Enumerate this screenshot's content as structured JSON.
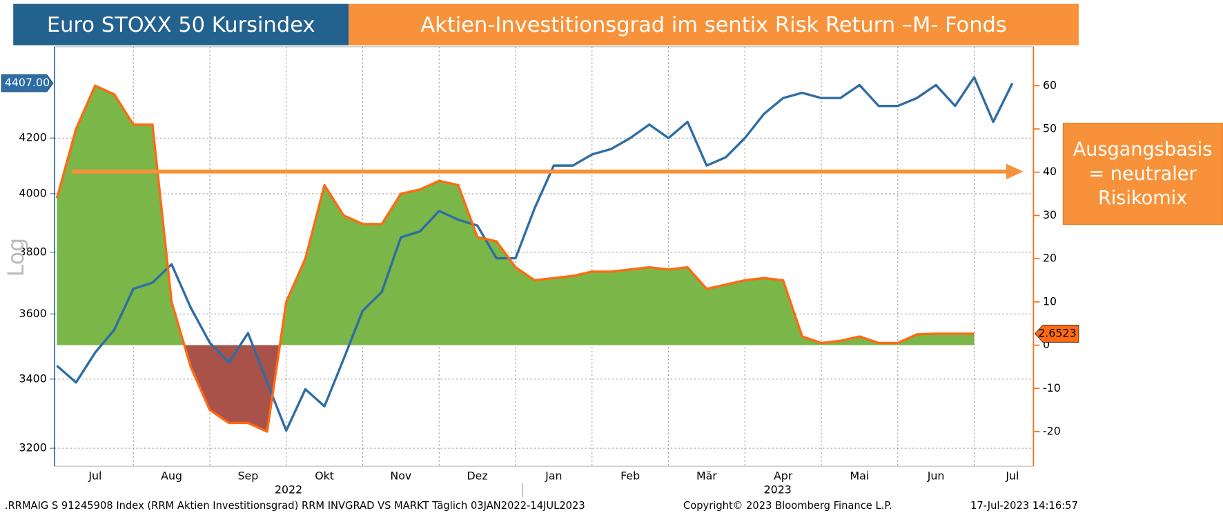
{
  "chart_data": {
    "type": "line",
    "titles": [
      "Euro STOXX 50 Kursindex",
      "Aktien-Investitionsgrad im sentix Risk Return –M- Fonds"
    ],
    "annotation": [
      "Ausgangsbasis",
      "= neutraler",
      "Risikomix"
    ],
    "y_label": "Log",
    "log_scale": true,
    "grid": true,
    "x": [
      "",
      null,
      "Jul",
      null,
      null,
      null,
      "Aug",
      null,
      null,
      null,
      "Sep",
      null,
      null,
      null,
      "Okt",
      null,
      null,
      null,
      "Nov",
      null,
      null,
      null,
      "Dez",
      null,
      null,
      null,
      "Jan",
      null,
      null,
      null,
      "Feb",
      null,
      null,
      null,
      "Mär",
      null,
      null,
      null,
      "Apr",
      null,
      null,
      null,
      "Mai",
      null,
      null,
      null,
      "Jun",
      null,
      null,
      null,
      "Jul"
    ],
    "x_years": [
      "2022",
      "2023"
    ],
    "ylim": [
      3150,
      4550
    ],
    "yticks": [
      3200,
      3400,
      3600,
      3800,
      4000,
      4200
    ],
    "y2lim": [
      -28,
      69
    ],
    "y2ticks": [
      -20,
      -10,
      0,
      10,
      20,
      30,
      40,
      50,
      60
    ],
    "series": [
      {
        "name": "Euro STOXX 50 Kursindex",
        "color": "#2e6da4",
        "axis": "y",
        "values": [
          3440,
          3390,
          3480,
          3550,
          3680,
          3700,
          3760,
          3620,
          3510,
          3450,
          3540,
          3390,
          3250,
          3370,
          3320,
          3460,
          3610,
          3670,
          3850,
          3870,
          3940,
          3910,
          3890,
          3780,
          3780,
          3950,
          4100,
          4100,
          4140,
          4160,
          4200,
          4250,
          4200,
          4260,
          4100,
          4130,
          4200,
          4290,
          4350,
          4370,
          4350,
          4350,
          4400,
          4320,
          4320,
          4350,
          4400,
          4320,
          4430,
          4260,
          4407
        ],
        "value_labels": [
          null,
          null,
          null,
          null,
          null,
          null,
          null,
          null,
          null,
          null,
          null,
          null,
          null,
          null,
          null,
          null,
          null,
          null,
          null,
          null,
          null,
          null,
          null,
          null,
          null,
          null,
          null,
          null,
          null,
          null,
          null,
          null,
          null,
          null,
          null,
          null,
          null,
          null,
          null,
          null,
          null,
          null,
          null,
          null,
          null,
          null,
          null,
          null,
          null,
          null,
          "4407.00"
        ]
      },
      {
        "name": "Aktien-Investitionsgrad im sentix Risk Return –M- Fonds",
        "color": "#ff6a13",
        "axis": "y2",
        "pos_color": "#7ab648",
        "neg_color": "#a8524a",
        "values": [
          34,
          50,
          60,
          58,
          51,
          51,
          10,
          -5,
          -15,
          -18,
          -18,
          -20,
          10,
          20,
          37,
          30,
          28,
          28,
          35,
          36,
          38,
          37,
          25,
          24,
          18,
          15,
          15.5,
          16,
          17,
          17,
          17.5,
          18,
          17.5,
          18,
          13,
          14,
          15,
          15.5,
          15,
          2,
          0.5,
          1,
          2,
          0.5,
          0.5,
          2.5,
          2.65,
          2.65,
          2.6523,
          null,
          null
        ],
        "value_labels": [
          null,
          null,
          null,
          null,
          null,
          null,
          null,
          null,
          null,
          null,
          null,
          null,
          null,
          null,
          null,
          null,
          null,
          null,
          null,
          null,
          null,
          null,
          null,
          null,
          null,
          null,
          null,
          null,
          null,
          null,
          null,
          null,
          null,
          null,
          null,
          null,
          null,
          null,
          null,
          null,
          null,
          null,
          null,
          null,
          null,
          null,
          null,
          null,
          "2.6523",
          null,
          null
        ]
      }
    ],
    "footer": [
      ".RRMAIG S 91245908 Index (RRM Aktien Investitionsgrad) RRM INVGRAD VS MARKT  Täglich 03JAN2022-14JUL2023",
      "Copyright© 2023 Bloomberg Finance L.P.",
      "17-Jul-2023 14:16:57"
    ]
  }
}
